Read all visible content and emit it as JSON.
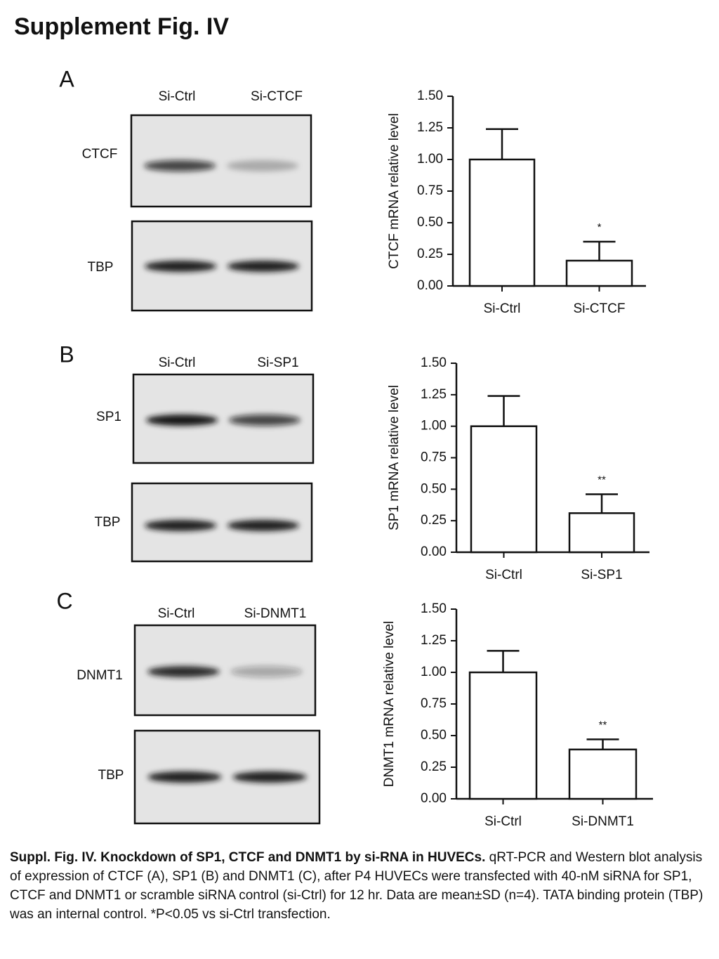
{
  "title": "Supplement Fig. IV",
  "panels": [
    {
      "letter": "A",
      "lanes": [
        "Si-Ctrl",
        "Si-CTCF"
      ],
      "blots": [
        "CTCF",
        "TBP"
      ]
    },
    {
      "letter": "B",
      "lanes": [
        "Si-Ctrl",
        "Si-SP1"
      ],
      "blots": [
        "SP1",
        "TBP"
      ]
    },
    {
      "letter": "C",
      "lanes": [
        "Si-Ctrl",
        "Si-DNMT1"
      ],
      "blots": [
        "DNMT1",
        "TBP"
      ]
    }
  ],
  "chart_data": [
    {
      "type": "bar",
      "y_label": "CTCF mRNA relative level",
      "categories": [
        "Si-Ctrl",
        "Si-CTCF"
      ],
      "values": [
        1.0,
        0.2
      ],
      "errors": [
        0.24,
        0.15
      ],
      "annotation": "*",
      "color": "#ffffff",
      "ylim": [
        0,
        1.5
      ],
      "yticks": [
        {
          "value": 0,
          "label": "0.00"
        },
        0.25,
        {
          "value": 0.5,
          "label": "0.50"
        },
        0.75,
        {
          "value": 1,
          "label": "1.00"
        },
        1.25,
        {
          "value": 1.5,
          "label": "1.50"
        }
      ]
    },
    {
      "type": "bar",
      "y_label": "SP1 mRNA relative level",
      "categories": [
        "Si-Ctrl",
        "Si-SP1"
      ],
      "values": [
        1.0,
        0.31
      ],
      "errors": [
        0.24,
        0.15
      ],
      "annotation": "**",
      "color": "#ffffff",
      "ylim": [
        0,
        1.5
      ],
      "yticks": [
        {
          "value": 0,
          "label": "0.00"
        },
        0.25,
        {
          "value": 0.5,
          "label": "0.50"
        },
        0.75,
        {
          "value": 1,
          "label": "1.00"
        },
        1.25,
        {
          "value": 1.5,
          "label": "1.50"
        }
      ]
    },
    {
      "type": "bar",
      "y_label": "DNMT1 mRNA relative level",
      "categories": [
        "Si-Ctrl",
        "Si-DNMT1"
      ],
      "values": [
        1.0,
        0.39
      ],
      "errors": [
        0.17,
        0.08
      ],
      "annotation": "**",
      "color": "#ffffff",
      "ylim": [
        0,
        1.5
      ],
      "yticks": [
        {
          "value": 0,
          "label": "0.00"
        },
        0.25,
        {
          "value": 0.5,
          "label": "0.50"
        },
        0.75,
        {
          "value": 1,
          "label": "1.00"
        },
        1.25,
        {
          "value": 1.5,
          "label": "1.50"
        }
      ]
    }
  ],
  "caption": {
    "bold": "Suppl. Fig. IV. Knockdown of SP1, CTCF and DNMT1 by si-RNA in HUVECs.",
    "text": "qRT-PCR and Western blot analysis of expression of CTCF (A), SP1 (B) and DNMT1 (C), after P4 HUVECs were transfected with 40-nM siRNA for SP1, CTCF and DNMT1 or scramble siRNA control (si-Ctrl) for 12 hr. Data are mean±SD (n=4). TATA binding protein (TBP)  was an internal control. *P<0.05 vs si-Ctrl transfection."
  }
}
